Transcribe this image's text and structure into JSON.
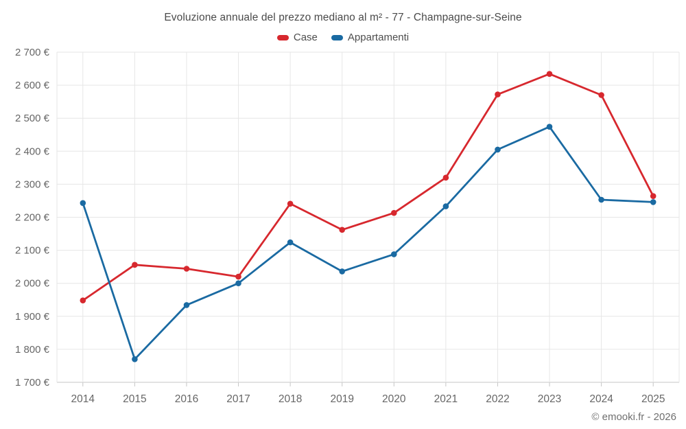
{
  "title": "Evoluzione annuale del prezzo mediano al m² - 77 - Champagne-sur-Seine",
  "footer": {
    "credit": "© emooki.fr - 2026"
  },
  "colors": {
    "case_red": "#d7282e",
    "appartamenti_blue": "#1a6aa2",
    "grid": "#e6e6e6",
    "axis": "#c6c6c6",
    "axis_text": "#666666",
    "title_text": "#4a4a4a"
  },
  "chart_data": {
    "type": "line",
    "categories": [
      "2014",
      "2015",
      "2016",
      "2017",
      "2018",
      "2019",
      "2020",
      "2021",
      "2022",
      "2023",
      "2024",
      "2025"
    ],
    "series": [
      {
        "name": "Case",
        "color": "#d7282e",
        "values": [
          1948,
          2056,
          2044,
          2020,
          2241,
          2162,
          2213,
          2320,
          2572,
          2634,
          2570,
          2264
        ]
      },
      {
        "name": "Appartamenti",
        "color": "#1a6aa2",
        "values": [
          2243,
          1770,
          1934,
          2000,
          2124,
          2036,
          2088,
          2233,
          2405,
          2474,
          2253,
          2246
        ]
      }
    ],
    "xlabel": "",
    "ylabel": "",
    "ylim": [
      1700,
      2700
    ],
    "ytick_step": 100,
    "ytick_labels": [
      "1 700 €",
      "1 800 €",
      "1 900 €",
      "2 000 €",
      "2 100 €",
      "2 200 €",
      "2 300 €",
      "2 400 €",
      "2 500 €",
      "2 600 €",
      "2 700 €"
    ],
    "grid": true,
    "legend_position": "top",
    "marker": "circle"
  }
}
